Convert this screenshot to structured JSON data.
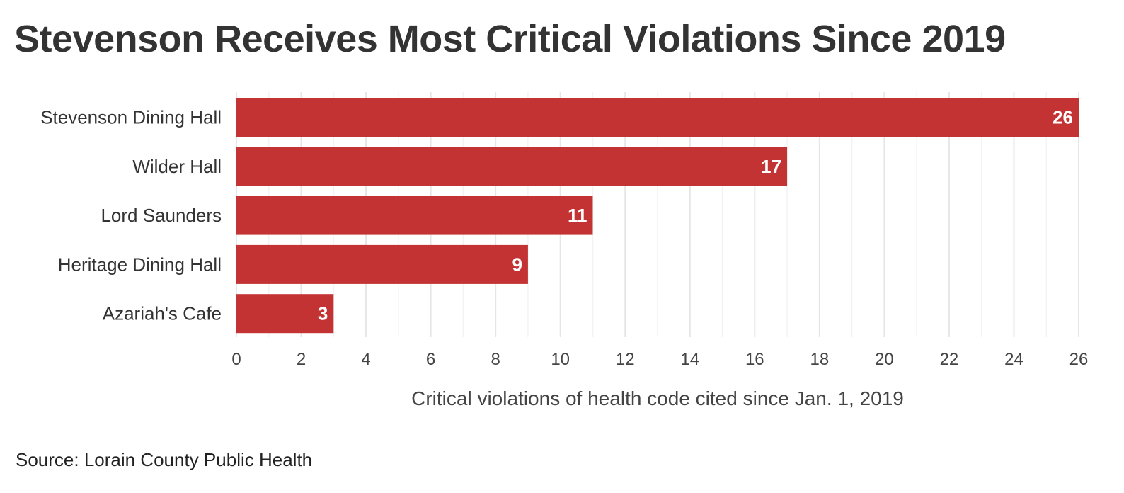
{
  "title": "Stevenson Receives Most Critical Violations Since 2019",
  "source": "Source: Lorain County Public Health",
  "colors": {
    "bar": "#c33333",
    "grid": "#e6e6e6",
    "text": "#333333",
    "bar_label": "#ffffff"
  },
  "chart_data": {
    "type": "bar",
    "orientation": "horizontal",
    "categories": [
      "Stevenson Dining Hall",
      "Wilder Hall",
      "Lord Saunders",
      "Heritage Dining Hall",
      "Azariah's Cafe"
    ],
    "values": [
      26,
      17,
      11,
      9,
      3
    ],
    "data_labels": [
      "26",
      "17",
      "11",
      "9",
      "3"
    ],
    "xlabel": "Critical violations of health code cited since Jan. 1, 2019",
    "ylabel": "",
    "xlim": [
      0,
      26
    ],
    "xticks": [
      0,
      2,
      4,
      6,
      8,
      10,
      12,
      14,
      16,
      18,
      20,
      22,
      24,
      26
    ],
    "grid": true
  }
}
